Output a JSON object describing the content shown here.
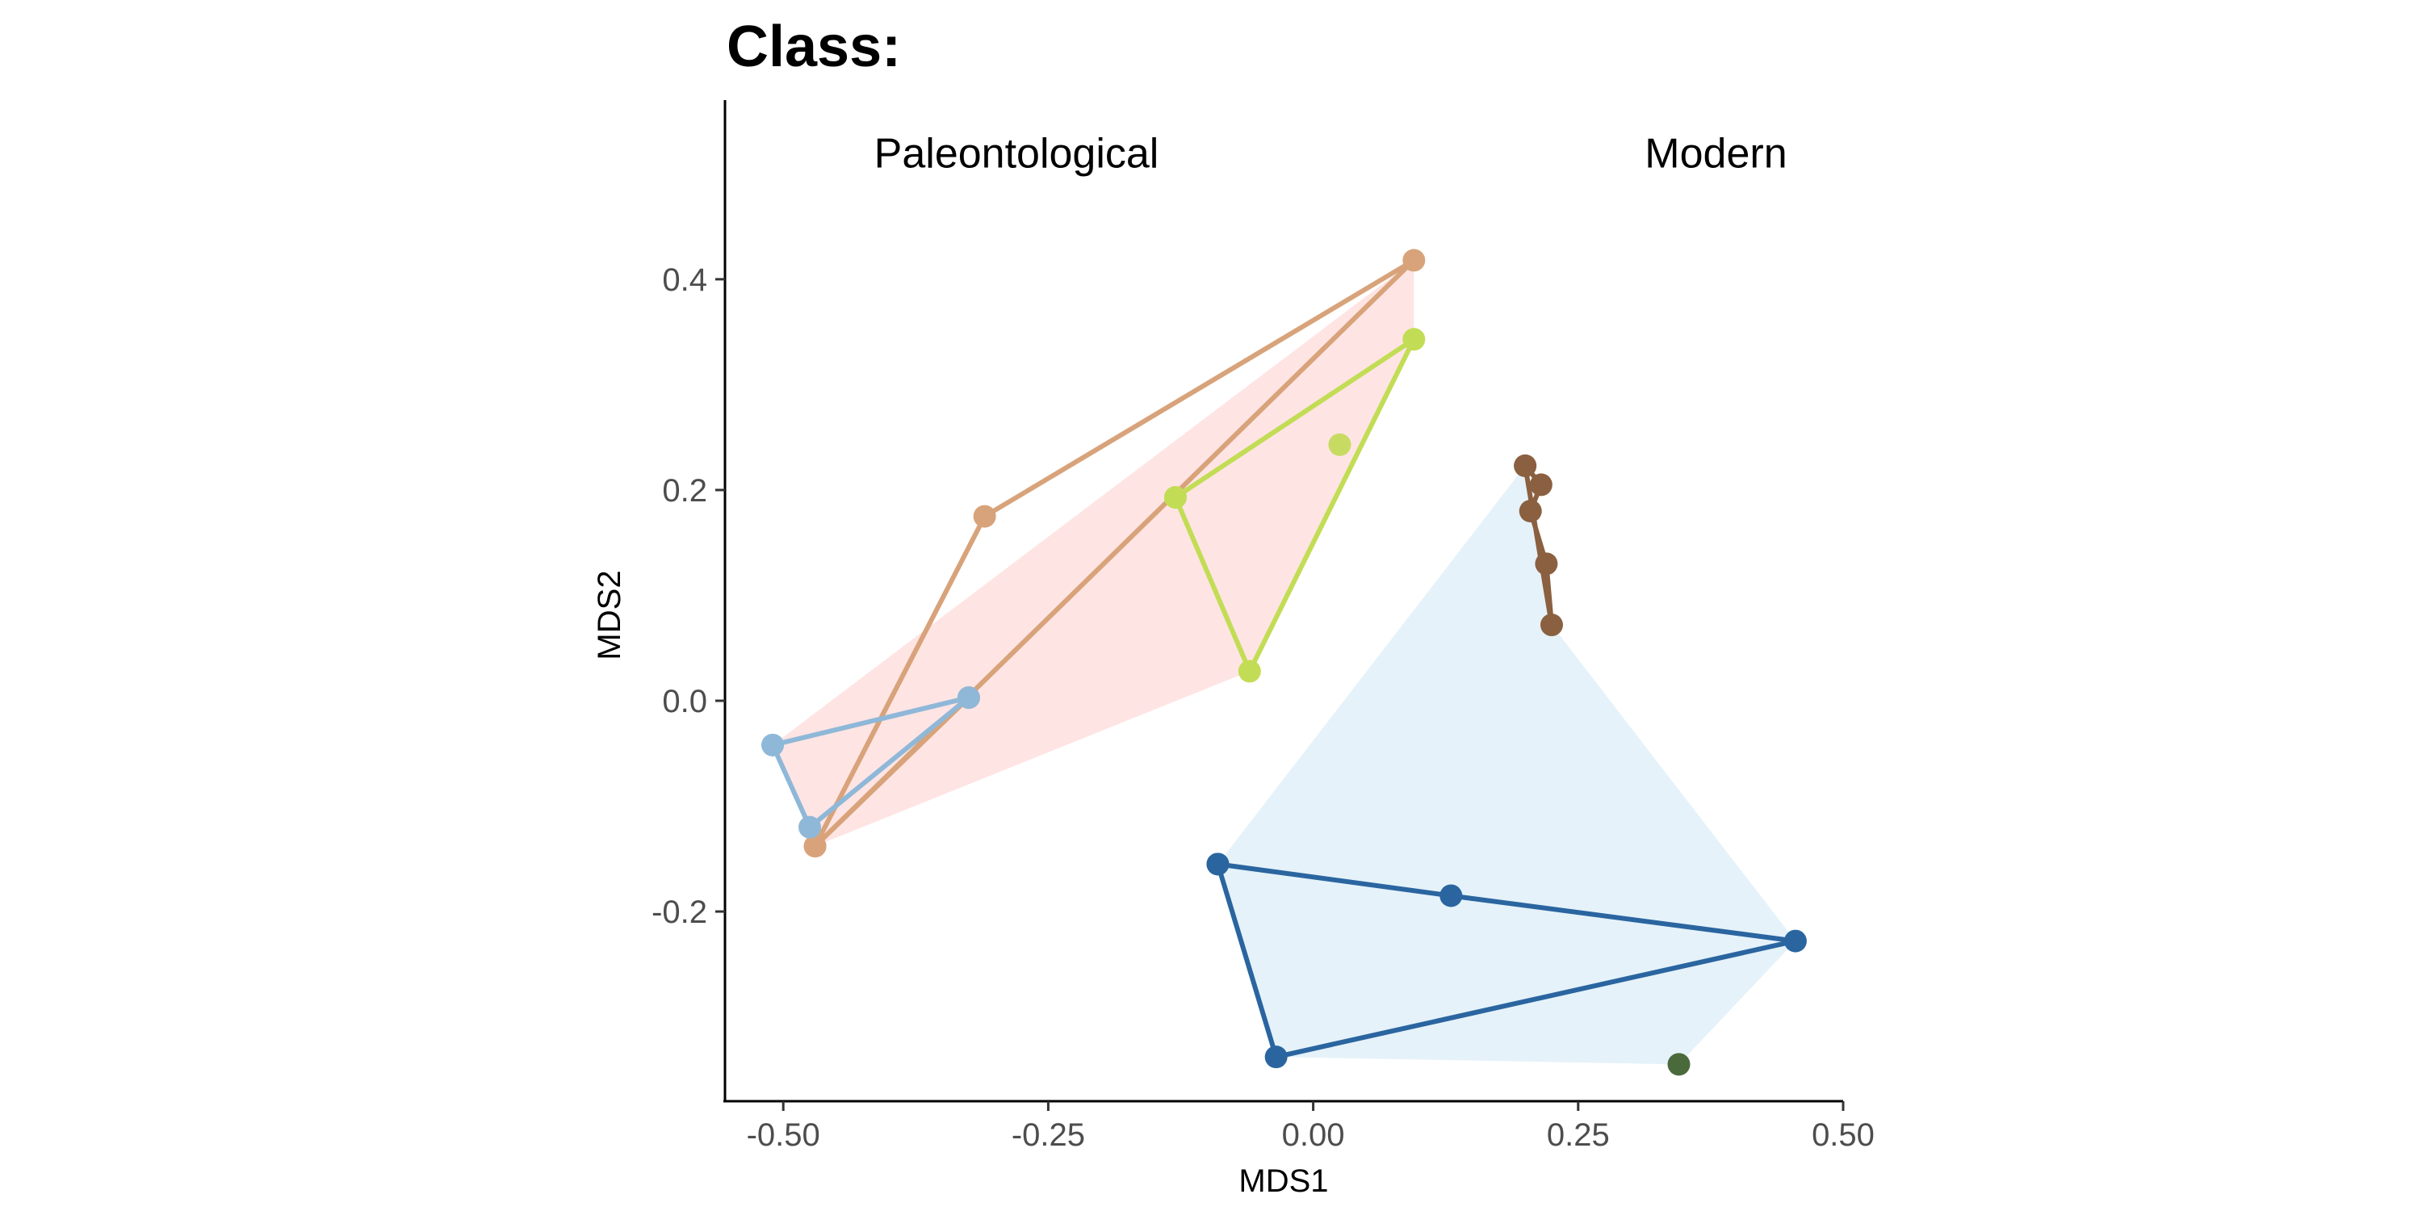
{
  "chart_data": {
    "type": "scatter",
    "title": "Class:",
    "xlabel": "MDS1",
    "ylabel": "MDS2",
    "xlim": [
      -0.555,
      0.5
    ],
    "ylim": [
      -0.38,
      0.57
    ],
    "xticks": [
      -0.5,
      -0.25,
      0.0,
      0.25,
      0.5
    ],
    "xtick_labels": [
      "-0.50",
      "-0.25",
      "0.00",
      "0.25",
      "0.50"
    ],
    "yticks": [
      -0.2,
      0.0,
      0.2,
      0.4
    ],
    "ytick_labels": [
      "-0.2",
      "0.0",
      "0.2",
      "0.4"
    ],
    "grid": false,
    "group_labels": [
      {
        "text": "Paleontological",
        "x": -0.28,
        "y": 0.52
      },
      {
        "text": "Modern",
        "x": 0.38,
        "y": 0.52
      }
    ],
    "hulls": [
      {
        "color": "#ffb3b3",
        "opacity": 0.35,
        "points": [
          [
            -0.51,
            -0.042
          ],
          [
            0.095,
            0.418
          ],
          [
            0.095,
            0.343
          ],
          [
            -0.06,
            0.028
          ],
          [
            -0.47,
            -0.138
          ]
        ]
      },
      {
        "color": "#a8d5ec",
        "opacity": 0.3,
        "points": [
          [
            0.2,
            0.223
          ],
          [
            0.225,
            0.072
          ],
          [
            0.455,
            -0.228
          ],
          [
            0.345,
            -0.345
          ],
          [
            -0.035,
            -0.338
          ],
          [
            -0.09,
            -0.155
          ]
        ]
      }
    ],
    "series": [
      {
        "color": "#d8a37a",
        "line": true,
        "points": [
          [
            -0.47,
            -0.138
          ],
          [
            -0.31,
            0.175
          ],
          [
            0.095,
            0.418
          ],
          [
            -0.47,
            -0.138
          ],
          [
            -0.325,
            0.003
          ]
        ]
      },
      {
        "color": "#c2dd55",
        "line": true,
        "points": [
          [
            -0.13,
            0.193
          ],
          [
            -0.06,
            0.028
          ],
          [
            0.095,
            0.343
          ],
          [
            -0.13,
            0.193
          ]
        ]
      },
      {
        "color": "#c7db63",
        "line": false,
        "points": [
          [
            0.025,
            0.243
          ]
        ]
      },
      {
        "color": "#8fb8d8",
        "line": true,
        "points": [
          [
            -0.51,
            -0.042
          ],
          [
            -0.325,
            0.003
          ],
          [
            -0.475,
            -0.12
          ],
          [
            -0.51,
            -0.042
          ]
        ]
      },
      {
        "color": "#8a6040",
        "line": true,
        "points": [
          [
            0.2,
            0.223
          ],
          [
            0.215,
            0.205
          ],
          [
            0.205,
            0.18
          ],
          [
            0.22,
            0.13
          ],
          [
            0.225,
            0.072
          ],
          [
            0.2,
            0.223
          ]
        ]
      },
      {
        "color": "#2a65a0",
        "line": true,
        "points": [
          [
            -0.09,
            -0.155
          ],
          [
            0.13,
            -0.185
          ],
          [
            0.455,
            -0.228
          ],
          [
            -0.035,
            -0.338
          ],
          [
            -0.09,
            -0.155
          ]
        ]
      },
      {
        "color": "#4a6a3c",
        "line": false,
        "points": [
          [
            0.345,
            -0.345
          ]
        ]
      }
    ]
  }
}
